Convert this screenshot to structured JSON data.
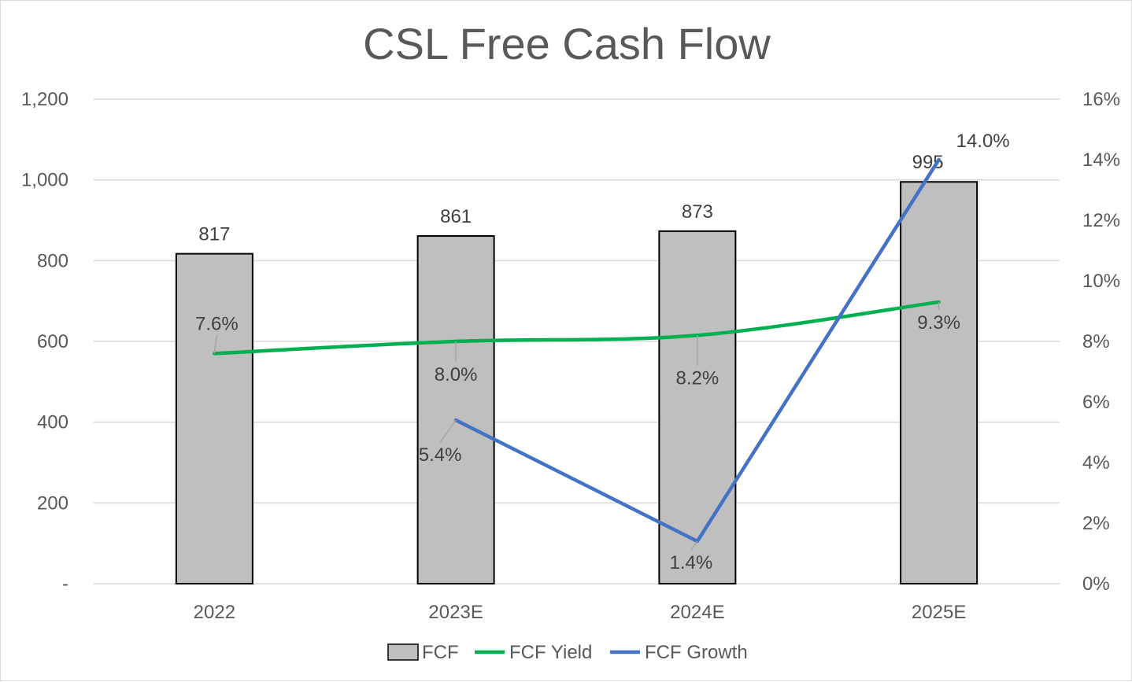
{
  "chart_data": {
    "type": "bar",
    "title": "CSL Free Cash Flow",
    "categories": [
      "2022",
      "2023E",
      "2024E",
      "2025E"
    ],
    "series": [
      {
        "name": "FCF",
        "type": "bar",
        "axis": "left",
        "values": [
          817,
          861,
          873,
          995
        ],
        "labels": [
          "817",
          "861",
          "873",
          "995"
        ],
        "color": "#bfbfbf"
      },
      {
        "name": "FCF Yield",
        "type": "line",
        "axis": "right",
        "values": [
          7.6,
          8.0,
          8.2,
          9.3
        ],
        "labels": [
          "7.6%",
          "8.0%",
          "8.2%",
          "9.3%"
        ],
        "color": "#00b050"
      },
      {
        "name": "FCF Growth",
        "type": "line",
        "axis": "right",
        "values": [
          null,
          5.4,
          1.4,
          14.0
        ],
        "labels": [
          "",
          "5.4%",
          "1.4%",
          "14.0%"
        ],
        "color": "#4472c4"
      }
    ],
    "left_axis": {
      "ylim": [
        0,
        1200
      ],
      "tick_labels": [
        "-",
        "200",
        "400",
        "600",
        "800",
        "1,000",
        "1,200"
      ]
    },
    "right_axis": {
      "ylim": [
        0,
        16
      ],
      "tick_labels": [
        "0%",
        "2%",
        "4%",
        "6%",
        "8%",
        "10%",
        "12%",
        "14%",
        "16%"
      ]
    },
    "grid": true,
    "legend": "bottom"
  }
}
